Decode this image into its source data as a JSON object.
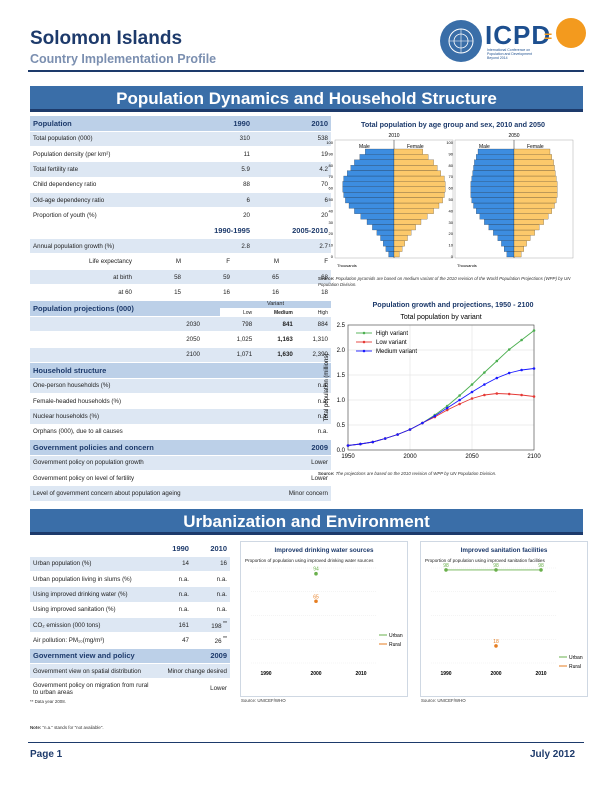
{
  "header": {
    "title": "Solomon Islands",
    "subtitle": "Country Implementation Profile",
    "logo_text": "ICPD",
    "logo_eq": "=",
    "logo_small": "International Conference on Population and Development Beyond 2014"
  },
  "section1": {
    "title": "Population Dynamics and Household Structure"
  },
  "section2": {
    "title": "Urbanization and Environment"
  },
  "population": {
    "header": {
      "label": "Population",
      "y1": "1990",
      "y2": "2010"
    },
    "rows": [
      {
        "label": "Total population (000)",
        "v1": "310",
        "v2": "538"
      },
      {
        "label": "Population density (per km²)",
        "v1": "11",
        "v2": "19"
      },
      {
        "label": "Total fertility rate",
        "v1": "5.9",
        "v2": "4.2"
      },
      {
        "label": "Child dependency ratio",
        "v1": "88",
        "v2": "70"
      },
      {
        "label": "Old-age dependency ratio",
        "v1": "6",
        "v2": "6"
      },
      {
        "label": "Proportion of youth (%)",
        "v1": "20",
        "v2": "20"
      }
    ],
    "period_header": {
      "p1": "1990-1995",
      "p2": "2005-2010"
    },
    "growth": {
      "label": "Annual population growth (%)",
      "v1": "2.8",
      "v2": "2.7"
    },
    "le_header": {
      "label": "Life expectancy",
      "c1": "M",
      "c2": "F",
      "c3": "M",
      "c4": "F"
    },
    "le_rows": [
      {
        "label": "at birth",
        "v": [
          "58",
          "59",
          "65",
          "68"
        ]
      },
      {
        "label": "at 60",
        "v": [
          "15",
          "16",
          "16",
          "18"
        ]
      }
    ]
  },
  "projections": {
    "header": "Population projections (000)",
    "variant": "Variant",
    "cols": [
      "Low",
      "Medium",
      "High"
    ],
    "rows": [
      {
        "year": "2030",
        "v": [
          "798",
          "841",
          "884"
        ]
      },
      {
        "year": "2050",
        "v": [
          "1,025",
          "1,163",
          "1,310"
        ]
      },
      {
        "year": "2100",
        "v": [
          "1,071",
          "1,630",
          "2,390"
        ]
      }
    ]
  },
  "household": {
    "header": "Household structure",
    "rows": [
      {
        "label": "One-person households (%)",
        "v": "n.a."
      },
      {
        "label": "Female-headed households (%)",
        "v": "n.a."
      },
      {
        "label": "Nuclear households (%)",
        "v": "n.a."
      },
      {
        "label": "Orphans (000), due to all causes",
        "v": "n.a."
      }
    ]
  },
  "policies": {
    "header": "Government policies and concern",
    "year": "2009",
    "rows": [
      {
        "label": "Government policy on population growth",
        "v": "Lower"
      },
      {
        "label": "Government policy on level of fertility",
        "v": "Lower"
      },
      {
        "label": "Level of government concern about population ageing",
        "v": "Minor concern"
      }
    ]
  },
  "pyramid": {
    "title": "Total population by age group and sex, 2010 and 2050",
    "years": [
      "2010",
      "2050"
    ],
    "male": "Male",
    "female": "Female",
    "ages": [
      "100",
      "90",
      "80",
      "70",
      "60",
      "50",
      "40",
      "30",
      "20",
      "10",
      "0"
    ],
    "xlabel": "Thousands",
    "source_label": "Source:",
    "source": "Population pyramids are based on medium variant of the 2010 revision of the World Population Projections (WPP) by UN Population Division."
  },
  "growth_chart": {
    "title": "Population growth and projections, 1950 - 2100",
    "source_label": "Source:",
    "source": "The projections are based on the 2010 revision of WPP by UN Population Division."
  },
  "chart_data": {
    "type": "line",
    "title": "Total population by variant",
    "ylabel": "Total population (millions)",
    "xlabel": "",
    "xlim": [
      1950,
      2100
    ],
    "ylim": [
      0,
      2.5
    ],
    "xticks": [
      "1950",
      "2000",
      "2050",
      "2100"
    ],
    "yticks": [
      "0.0",
      "0.5",
      "1.0",
      "1.5",
      "2.0",
      "2.5"
    ],
    "grid": true,
    "legend": "top-left",
    "x": [
      1950,
      1960,
      1970,
      1980,
      1990,
      2000,
      2010,
      2020,
      2030,
      2040,
      2050,
      2060,
      2070,
      2080,
      2090,
      2100
    ],
    "series": [
      {
        "name": "High variant",
        "color": "#4caf50",
        "values": [
          0.09,
          0.12,
          0.16,
          0.23,
          0.31,
          0.41,
          0.54,
          0.7,
          0.88,
          1.09,
          1.31,
          1.55,
          1.78,
          2.01,
          2.2,
          2.39
        ]
      },
      {
        "name": "Low variant",
        "color": "#e53935",
        "values": [
          0.09,
          0.12,
          0.16,
          0.23,
          0.31,
          0.41,
          0.54,
          0.66,
          0.8,
          0.92,
          1.03,
          1.1,
          1.13,
          1.12,
          1.1,
          1.07
        ]
      },
      {
        "name": "Medium variant",
        "color": "#1a1aff",
        "values": [
          0.09,
          0.12,
          0.16,
          0.23,
          0.31,
          0.41,
          0.54,
          0.68,
          0.84,
          1.0,
          1.16,
          1.31,
          1.44,
          1.54,
          1.6,
          1.63
        ]
      }
    ]
  },
  "urban": {
    "header": {
      "y1": "1990",
      "y2": "2010"
    },
    "rows": [
      {
        "label": "Urban population (%)",
        "v1": "14",
        "v2": "16",
        "note": ""
      },
      {
        "label": "Urban population living in slums (%)",
        "v1": "n.a.",
        "v2": "n.a.",
        "note": ""
      },
      {
        "label": "Using improved drinking water (%)",
        "v1": "n.a.",
        "v2": "n.a.",
        "note": ""
      },
      {
        "label": "Using improved sanitation (%)",
        "v1": "n.a.",
        "v2": "n.a.",
        "note": ""
      },
      {
        "label": "CO₂ emission (000 tons)",
        "v1": "161",
        "v2": "198",
        "note": "**"
      },
      {
        "label": "Air pollution: PM₁₀(mg/m³)",
        "v1": "47",
        "v2": "26",
        "note": "**"
      }
    ],
    "policy_header": "Government view and policy",
    "policy_year": "2009",
    "policy_rows": [
      {
        "label": "Government view on spatial distribution",
        "v": "Minor change desired"
      },
      {
        "label": "Government policy on migration from rural to urban areas",
        "v": "Lower"
      }
    ],
    "footnote": "** Data year 2008.",
    "note_label": "Note:",
    "note": " \"n.a.\" stands for \"not available\"."
  },
  "water": {
    "title": "Improved drinking water sources",
    "subtitle": "Proportion of population using improved drinking water sources",
    "years": [
      "1990",
      "2000",
      "2010"
    ],
    "legend": [
      "Urban",
      "Rural"
    ],
    "urban": [
      {
        "year": "2000",
        "value": 94
      }
    ],
    "rural": [
      {
        "year": "2000",
        "value": 65
      }
    ],
    "source": "Source: UNICEF/WHO"
  },
  "sanitation": {
    "title": "Improved sanitation facilities",
    "subtitle": "Proportion of population using improved sanitation facilities",
    "years": [
      "1990",
      "2000",
      "2010"
    ],
    "legend": [
      "Urban",
      "Rural"
    ],
    "urban": [
      {
        "year": "1990",
        "value": 98
      },
      {
        "year": "2000",
        "value": 98
      },
      {
        "year": "2010",
        "value": 98
      }
    ],
    "rural": [
      {
        "year": "2000",
        "value": 18
      }
    ],
    "source": "Source: UNICEF/WHO"
  },
  "footer": {
    "page": "Page 1",
    "date": "July 2012"
  }
}
